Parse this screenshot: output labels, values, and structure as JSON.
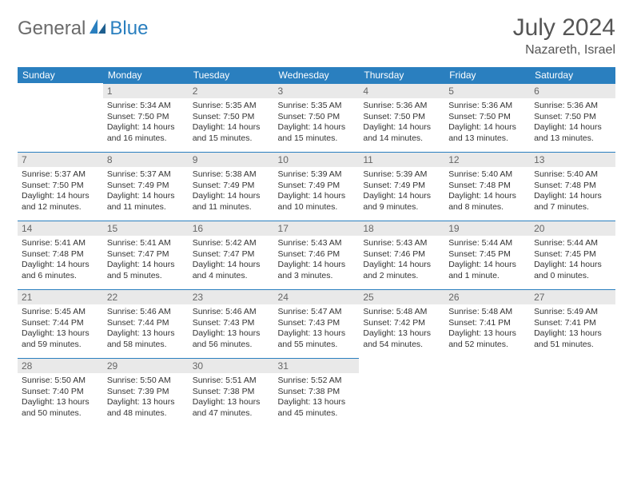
{
  "logo": {
    "text1": "General",
    "text2": "Blue"
  },
  "title": "July 2024",
  "location": "Nazareth, Israel",
  "colors": {
    "header_bg": "#2a7fbf",
    "header_text": "#ffffff",
    "daynum_bg": "#e9e9e9",
    "daynum_text": "#666666",
    "border": "#2a7fbf"
  },
  "weekdays": [
    "Sunday",
    "Monday",
    "Tuesday",
    "Wednesday",
    "Thursday",
    "Friday",
    "Saturday"
  ],
  "days": {
    "1": {
      "sunrise": "Sunrise: 5:34 AM",
      "sunset": "Sunset: 7:50 PM",
      "daylight": "Daylight: 14 hours and 16 minutes."
    },
    "2": {
      "sunrise": "Sunrise: 5:35 AM",
      "sunset": "Sunset: 7:50 PM",
      "daylight": "Daylight: 14 hours and 15 minutes."
    },
    "3": {
      "sunrise": "Sunrise: 5:35 AM",
      "sunset": "Sunset: 7:50 PM",
      "daylight": "Daylight: 14 hours and 15 minutes."
    },
    "4": {
      "sunrise": "Sunrise: 5:36 AM",
      "sunset": "Sunset: 7:50 PM",
      "daylight": "Daylight: 14 hours and 14 minutes."
    },
    "5": {
      "sunrise": "Sunrise: 5:36 AM",
      "sunset": "Sunset: 7:50 PM",
      "daylight": "Daylight: 14 hours and 13 minutes."
    },
    "6": {
      "sunrise": "Sunrise: 5:36 AM",
      "sunset": "Sunset: 7:50 PM",
      "daylight": "Daylight: 14 hours and 13 minutes."
    },
    "7": {
      "sunrise": "Sunrise: 5:37 AM",
      "sunset": "Sunset: 7:50 PM",
      "daylight": "Daylight: 14 hours and 12 minutes."
    },
    "8": {
      "sunrise": "Sunrise: 5:37 AM",
      "sunset": "Sunset: 7:49 PM",
      "daylight": "Daylight: 14 hours and 11 minutes."
    },
    "9": {
      "sunrise": "Sunrise: 5:38 AM",
      "sunset": "Sunset: 7:49 PM",
      "daylight": "Daylight: 14 hours and 11 minutes."
    },
    "10": {
      "sunrise": "Sunrise: 5:39 AM",
      "sunset": "Sunset: 7:49 PM",
      "daylight": "Daylight: 14 hours and 10 minutes."
    },
    "11": {
      "sunrise": "Sunrise: 5:39 AM",
      "sunset": "Sunset: 7:49 PM",
      "daylight": "Daylight: 14 hours and 9 minutes."
    },
    "12": {
      "sunrise": "Sunrise: 5:40 AM",
      "sunset": "Sunset: 7:48 PM",
      "daylight": "Daylight: 14 hours and 8 minutes."
    },
    "13": {
      "sunrise": "Sunrise: 5:40 AM",
      "sunset": "Sunset: 7:48 PM",
      "daylight": "Daylight: 14 hours and 7 minutes."
    },
    "14": {
      "sunrise": "Sunrise: 5:41 AM",
      "sunset": "Sunset: 7:48 PM",
      "daylight": "Daylight: 14 hours and 6 minutes."
    },
    "15": {
      "sunrise": "Sunrise: 5:41 AM",
      "sunset": "Sunset: 7:47 PM",
      "daylight": "Daylight: 14 hours and 5 minutes."
    },
    "16": {
      "sunrise": "Sunrise: 5:42 AM",
      "sunset": "Sunset: 7:47 PM",
      "daylight": "Daylight: 14 hours and 4 minutes."
    },
    "17": {
      "sunrise": "Sunrise: 5:43 AM",
      "sunset": "Sunset: 7:46 PM",
      "daylight": "Daylight: 14 hours and 3 minutes."
    },
    "18": {
      "sunrise": "Sunrise: 5:43 AM",
      "sunset": "Sunset: 7:46 PM",
      "daylight": "Daylight: 14 hours and 2 minutes."
    },
    "19": {
      "sunrise": "Sunrise: 5:44 AM",
      "sunset": "Sunset: 7:45 PM",
      "daylight": "Daylight: 14 hours and 1 minute."
    },
    "20": {
      "sunrise": "Sunrise: 5:44 AM",
      "sunset": "Sunset: 7:45 PM",
      "daylight": "Daylight: 14 hours and 0 minutes."
    },
    "21": {
      "sunrise": "Sunrise: 5:45 AM",
      "sunset": "Sunset: 7:44 PM",
      "daylight": "Daylight: 13 hours and 59 minutes."
    },
    "22": {
      "sunrise": "Sunrise: 5:46 AM",
      "sunset": "Sunset: 7:44 PM",
      "daylight": "Daylight: 13 hours and 58 minutes."
    },
    "23": {
      "sunrise": "Sunrise: 5:46 AM",
      "sunset": "Sunset: 7:43 PM",
      "daylight": "Daylight: 13 hours and 56 minutes."
    },
    "24": {
      "sunrise": "Sunrise: 5:47 AM",
      "sunset": "Sunset: 7:43 PM",
      "daylight": "Daylight: 13 hours and 55 minutes."
    },
    "25": {
      "sunrise": "Sunrise: 5:48 AM",
      "sunset": "Sunset: 7:42 PM",
      "daylight": "Daylight: 13 hours and 54 minutes."
    },
    "26": {
      "sunrise": "Sunrise: 5:48 AM",
      "sunset": "Sunset: 7:41 PM",
      "daylight": "Daylight: 13 hours and 52 minutes."
    },
    "27": {
      "sunrise": "Sunrise: 5:49 AM",
      "sunset": "Sunset: 7:41 PM",
      "daylight": "Daylight: 13 hours and 51 minutes."
    },
    "28": {
      "sunrise": "Sunrise: 5:50 AM",
      "sunset": "Sunset: 7:40 PM",
      "daylight": "Daylight: 13 hours and 50 minutes."
    },
    "29": {
      "sunrise": "Sunrise: 5:50 AM",
      "sunset": "Sunset: 7:39 PM",
      "daylight": "Daylight: 13 hours and 48 minutes."
    },
    "30": {
      "sunrise": "Sunrise: 5:51 AM",
      "sunset": "Sunset: 7:38 PM",
      "daylight": "Daylight: 13 hours and 47 minutes."
    },
    "31": {
      "sunrise": "Sunrise: 5:52 AM",
      "sunset": "Sunset: 7:38 PM",
      "daylight": "Daylight: 13 hours and 45 minutes."
    }
  },
  "layout": {
    "first_weekday_index": 1,
    "num_days": 31
  }
}
